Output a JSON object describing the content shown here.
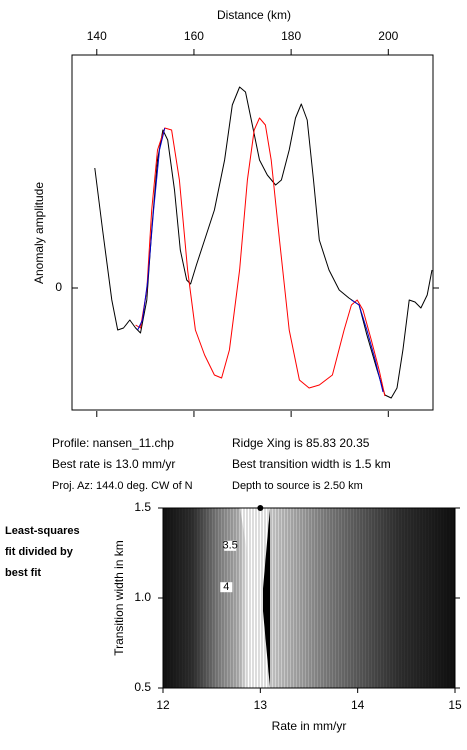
{
  "charts": [
    {
      "type": "line",
      "xlabel": "Distance (km)",
      "ylabel": "Anomaly amplitude",
      "xlim": [
        134.9,
        209.2
      ],
      "xticks": [
        140,
        160,
        180,
        200
      ],
      "ylim": [
        -1.22,
        2.33
      ],
      "yticks": [
        0
      ],
      "series": [
        {
          "color": "#000000",
          "x": [
            139.6,
            141.2,
            143.1,
            144.3,
            145.5,
            146.8,
            148.0,
            149.0,
            150.3,
            151.3,
            152.5,
            153.6,
            154.6,
            156.0,
            157.2,
            158.5,
            159.3,
            160.5,
            162.2,
            164.2,
            166.3,
            167.9,
            169.4,
            170.6,
            171.8,
            173.5,
            175.1,
            176.8,
            178.0,
            179.6,
            180.9,
            182.1,
            183.3,
            184.6,
            185.8,
            187.8,
            189.9,
            191.9,
            194.0,
            195.6,
            197.7,
            199.3,
            200.6,
            201.8,
            203.0,
            204.3,
            205.5,
            206.7,
            208.0,
            209.0
          ],
          "values": [
            1.2,
            0.58,
            -0.12,
            -0.42,
            -0.4,
            -0.32,
            -0.4,
            -0.45,
            -0.12,
            0.58,
            1.28,
            1.58,
            1.48,
            0.98,
            0.38,
            0.08,
            0.04,
            0.23,
            0.48,
            0.78,
            1.28,
            1.83,
            2.01,
            1.96,
            1.68,
            1.28,
            1.13,
            1.03,
            1.08,
            1.38,
            1.7,
            1.84,
            1.68,
            1.08,
            0.48,
            0.18,
            -0.02,
            -0.1,
            -0.17,
            -0.47,
            -0.82,
            -1.07,
            -1.1,
            -1.0,
            -0.62,
            -0.12,
            -0.14,
            -0.2,
            -0.07,
            0.18
          ]
        },
        {
          "color": "#ff0000",
          "x": [
            148.0,
            149.0,
            150.3,
            151.3,
            152.5,
            154.0,
            155.4,
            157.0,
            158.7,
            160.3,
            162.2,
            164.2,
            165.7,
            167.3,
            169.4,
            171.0,
            172.4,
            173.5,
            174.7,
            175.9,
            177.6,
            179.6,
            181.7,
            183.7,
            185.8,
            188.5,
            190.9,
            192.4,
            193.6,
            194.8,
            196.5,
            198.1,
            199.3
          ],
          "values": [
            -0.37,
            -0.4,
            -0.02,
            0.78,
            1.38,
            1.6,
            1.58,
            1.08,
            0.18,
            -0.42,
            -0.67,
            -0.87,
            -0.9,
            -0.62,
            0.18,
            1.08,
            1.58,
            1.7,
            1.63,
            1.28,
            0.48,
            -0.42,
            -0.92,
            -1.0,
            -0.97,
            -0.87,
            -0.42,
            -0.17,
            -0.12,
            -0.22,
            -0.52,
            -0.82,
            -1.08
          ]
        },
        {
          "color": "#0000cc",
          "x": [
            148.4,
            149.4,
            150.5,
            151.7,
            152.9,
            154.0,
            null,
            192.4,
            194.0,
            195.6,
            197.3,
            198.9
          ],
          "values": [
            -0.42,
            -0.32,
            0.08,
            0.78,
            1.38,
            1.6,
            null,
            -0.12,
            -0.17,
            -0.42,
            -0.72,
            -1.04
          ]
        }
      ]
    },
    {
      "type": "contour",
      "xlabel": "Rate in mm/yr",
      "ylabel": "Transition width in km",
      "xlim": [
        12,
        15
      ],
      "xticks": [
        12,
        13,
        14,
        15
      ],
      "ylim": [
        0.5,
        1.5
      ],
      "yticks": [
        {
          "value": 0.5,
          "label": "0.5"
        },
        {
          "value": 1.0,
          "label": "1.0"
        },
        {
          "value": 1.5,
          "label": "1.5"
        }
      ],
      "contour_labels": [
        {
          "x": 12.69,
          "y": 1.29,
          "label": "3.5"
        },
        {
          "x": 12.65,
          "y": 1.06,
          "label": "4"
        }
      ],
      "best_fit": {
        "x": 13.0,
        "y": 1.5
      },
      "side_label": [
        "Least-squares",
        "fit divided by",
        "best fit"
      ]
    }
  ],
  "info": {
    "col1": [
      "Profile: nansen_11.chp",
      "Best rate is 13.0 mm/yr",
      "Proj. Az: 144.0 deg. CW of N"
    ],
    "col2": [
      "Ridge Xing is 85.83 20.35",
      "Best transition width is 1.5 km",
      "Depth to source is   2.50 km"
    ]
  }
}
